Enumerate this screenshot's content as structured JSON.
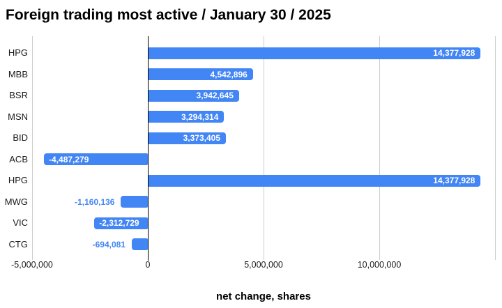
{
  "colors": {
    "bar": "#4285f4",
    "negative_outside_label": "#4285f4",
    "gridline": "#cccccc",
    "zero_line": "#000000",
    "text": "#1a1a1a"
  },
  "chart_data": {
    "type": "bar",
    "orientation": "horizontal",
    "title": "Foreign trading most active / January 30 / 2025",
    "xlabel": "net change, shares",
    "ylabel": "",
    "grid": true,
    "legend": "none",
    "xlim": [
      -5000000,
      15000000
    ],
    "categories": [
      "HPG",
      "MBB",
      "BSR",
      "MSN",
      "BID",
      "ACB",
      "HPG",
      "MWG",
      "VIC",
      "CTG"
    ],
    "values": [
      14377928,
      4542896,
      3942645,
      3294314,
      3373405,
      -4487279,
      14377928,
      -1160136,
      -2312729,
      -694081
    ],
    "value_labels": [
      "14,377,928",
      "4,542,896",
      "3,942,645",
      "3,294,314",
      "3,373,405",
      "-4,487,279",
      "14,377,928",
      "-1,160,136",
      "-2,312,729",
      "-694,081"
    ],
    "label_position": [
      "inside",
      "inside",
      "inside",
      "inside",
      "inside",
      "inside",
      "inside",
      "outside",
      "inside",
      "outside"
    ],
    "x_ticks": [
      {
        "value": -5000000,
        "label": "-5,000,000"
      },
      {
        "value": 0,
        "label": "0"
      },
      {
        "value": 5000000,
        "label": "5,000,000"
      },
      {
        "value": 10000000,
        "label": "10,000,000"
      },
      {
        "value": 15000000,
        "label": ""
      }
    ]
  }
}
